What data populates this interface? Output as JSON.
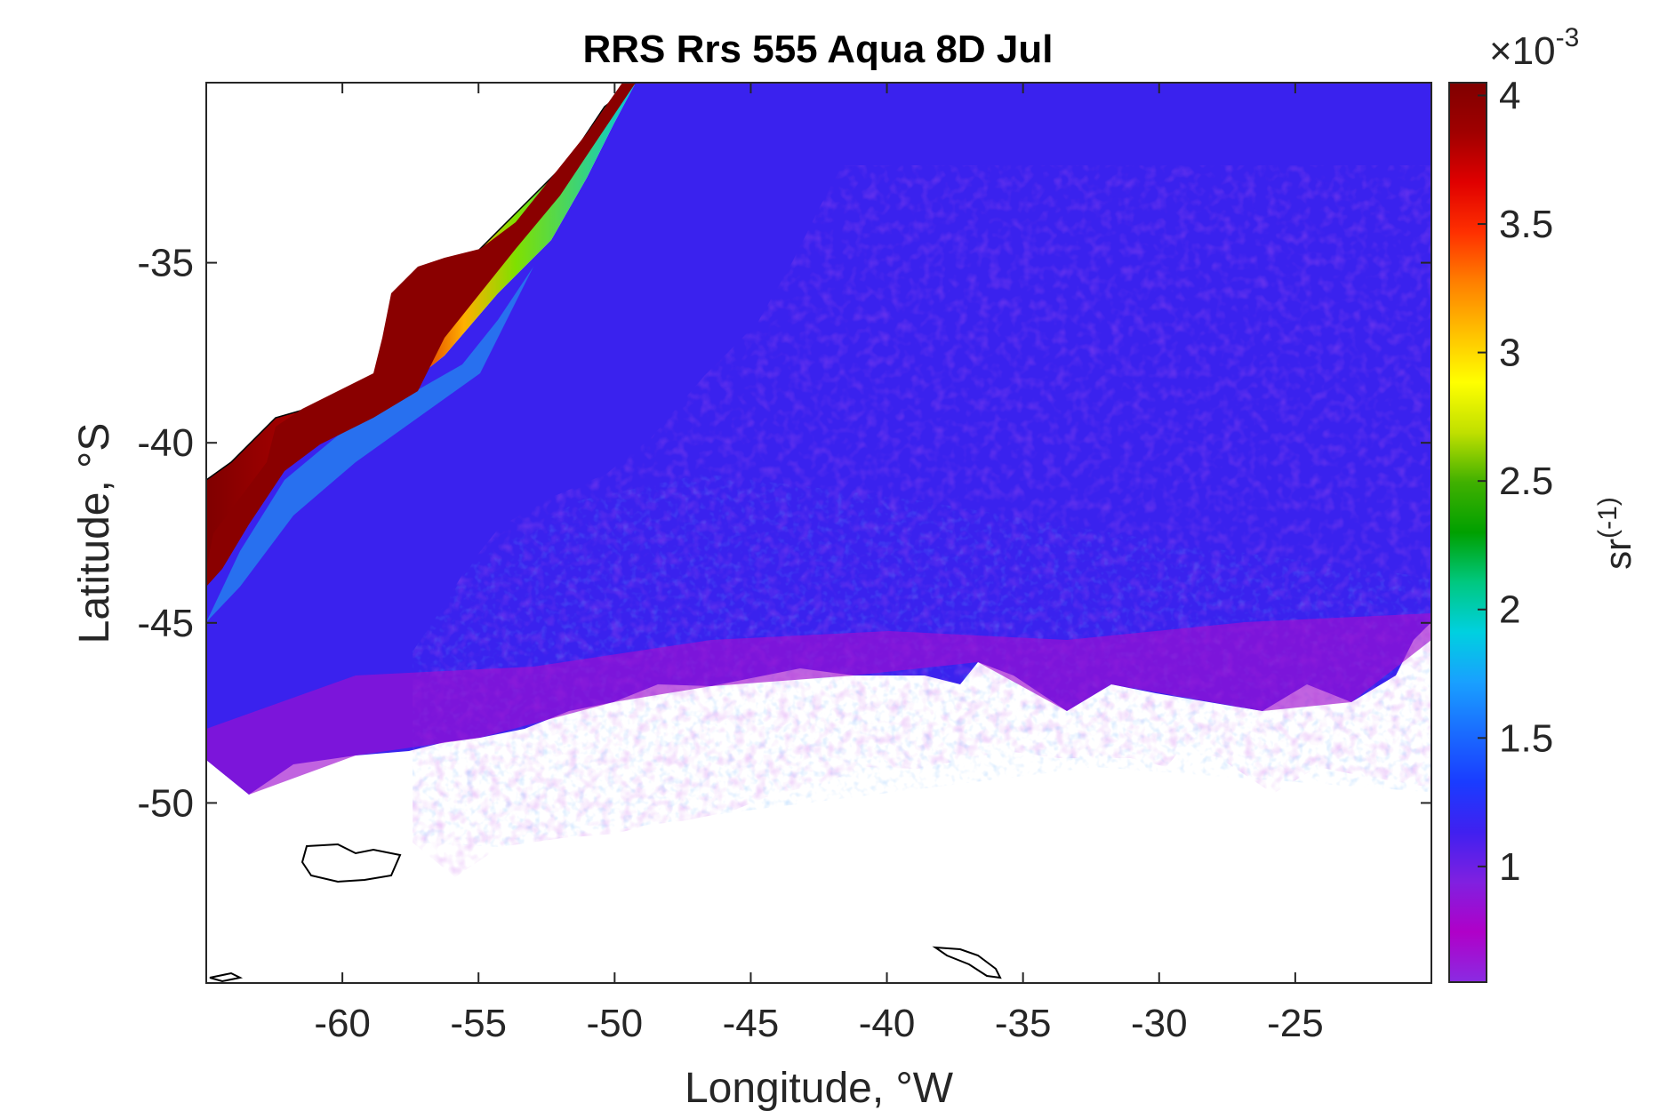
{
  "figure": {
    "title": "RRS Rrs 555 Aqua 8D Jul",
    "xlabel": "Longitude, °W",
    "ylabel": "Latitude, °S"
  },
  "map": {
    "x_range": [
      -65,
      -20
    ],
    "y_range": [
      -55,
      -30
    ],
    "x_ticks": [
      -60,
      -55,
      -50,
      -45,
      -40,
      -35,
      -30,
      -25
    ],
    "y_ticks": [
      -35,
      -40,
      -45,
      -50
    ],
    "no_data_color": "#ffffff",
    "land_outline_color": "#000000"
  },
  "colorbar": {
    "label": "sr(-1)",
    "label_base": "sr",
    "label_sup": "(-1)",
    "exponent_times": "×10",
    "exponent_power": "-3",
    "range": [
      0.55,
      4.05
    ],
    "ticks": [
      "4",
      "3.5",
      "3",
      "2.5",
      "2",
      "1.5",
      "1"
    ],
    "tick_values": [
      4,
      3.5,
      3,
      2.5,
      2,
      1.5,
      1
    ],
    "colors": [
      "#8a2be2",
      "#b000c8",
      "#8020e0",
      "#4020f0",
      "#1a3cff",
      "#1a6cff",
      "#19a0ff",
      "#00d0e0",
      "#00c880",
      "#00a000",
      "#40b000",
      "#c0e000",
      "#ffff00",
      "#ffc000",
      "#ff8000",
      "#ff3000",
      "#e00000",
      "#a00000",
      "#800000"
    ]
  }
}
